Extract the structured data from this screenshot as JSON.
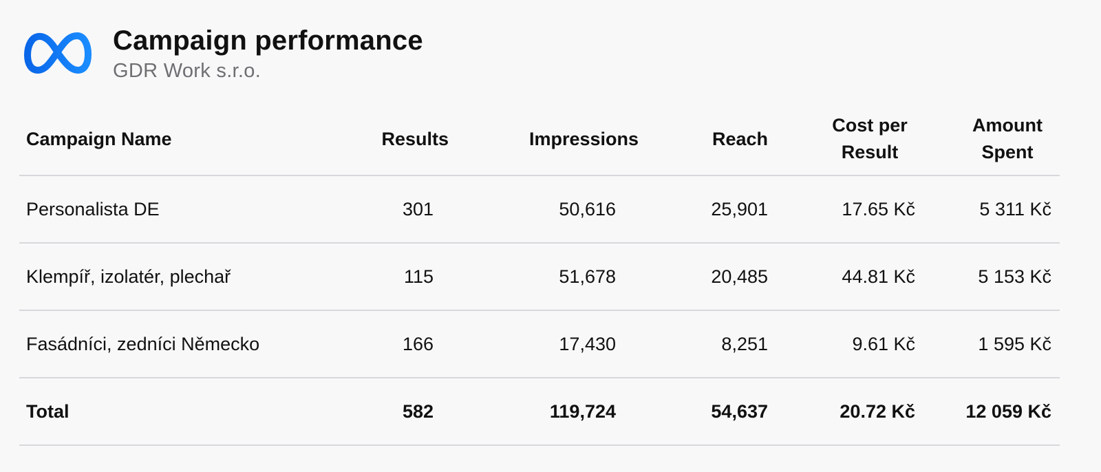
{
  "header": {
    "logo_icon": "meta-infinity-logo-icon",
    "title": "Campaign performance",
    "subtitle": "GDR Work s.r.o."
  },
  "colors": {
    "logo_blue": "#1877F2",
    "divider": "#d8d8dc",
    "subtitle_gray": "#6f6f73"
  },
  "table": {
    "columns": {
      "name": "Campaign Name",
      "results": "Results",
      "impressions": "Impressions",
      "reach": "Reach",
      "cost_per_result": "Cost per Result",
      "amount_spent": "Amount Spent"
    },
    "rows": [
      {
        "name": "Personalista DE",
        "results": "301",
        "impressions": "50,616",
        "reach": "25,901",
        "cost_per_result": "17.65 Kč",
        "amount_spent": "5 311 Kč"
      },
      {
        "name": "Klempíř, izolatér, plechař",
        "results": "115",
        "impressions": "51,678",
        "reach": "20,485",
        "cost_per_result": "44.81 Kč",
        "amount_spent": "5 153 Kč"
      },
      {
        "name": "Fasádníci, zedníci Německo",
        "results": "166",
        "impressions": "17,430",
        "reach": "8,251",
        "cost_per_result": "9.61 Kč",
        "amount_spent": "1 595 Kč"
      }
    ],
    "total": {
      "name": "Total",
      "results": "582",
      "impressions": "119,724",
      "reach": "54,637",
      "cost_per_result": "20.72 Kč",
      "amount_spent": "12 059 Kč"
    }
  }
}
